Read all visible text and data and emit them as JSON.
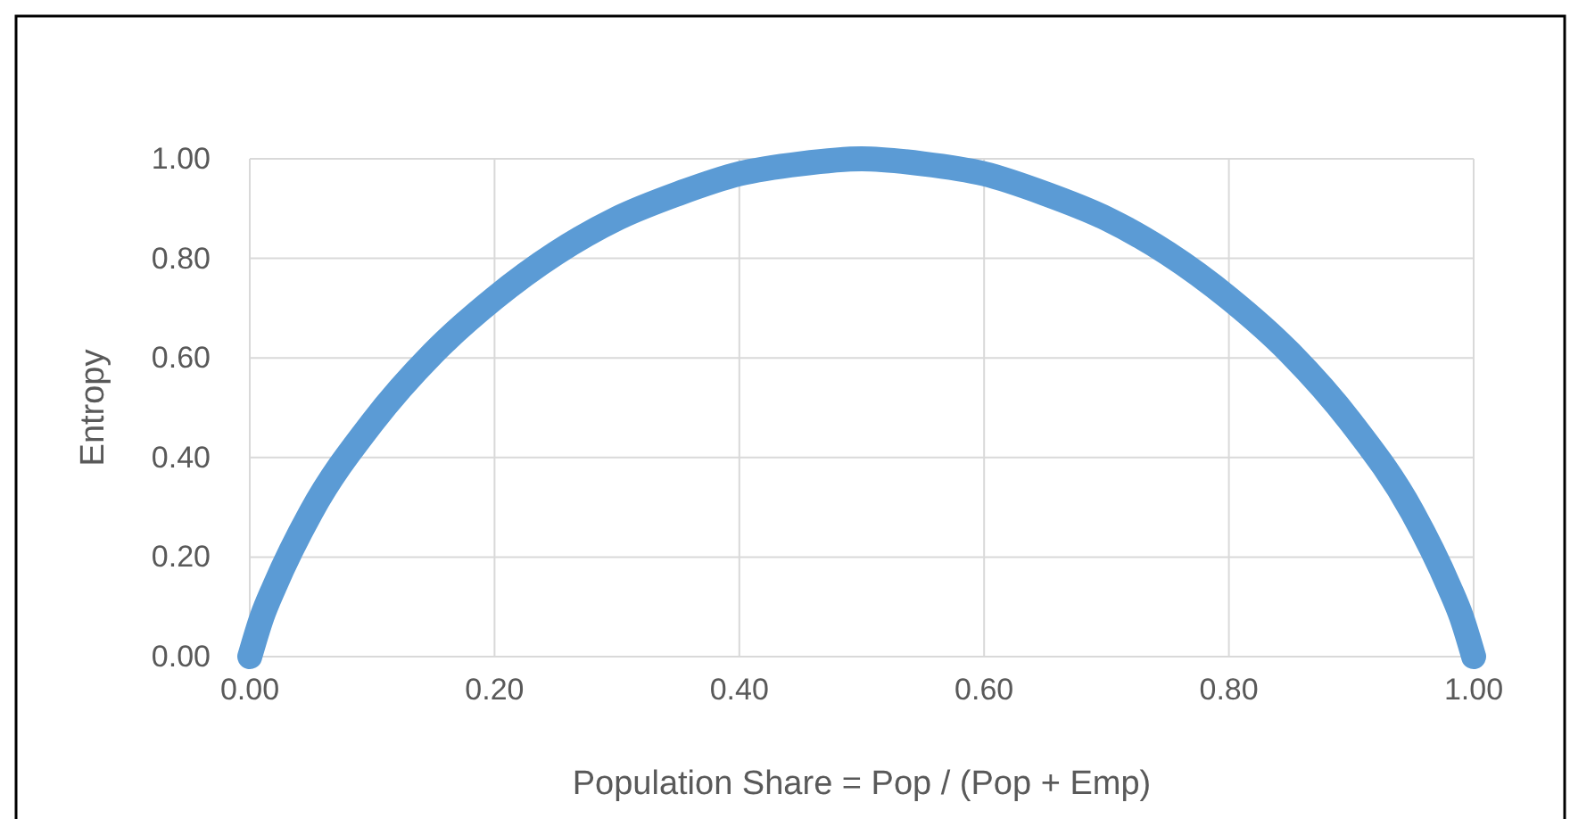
{
  "chart_data": {
    "type": "line",
    "xlabel": "Population Share = Pop / (Pop + Emp)",
    "ylabel": "Entropy",
    "x": [
      0,
      0.01,
      0.02,
      0.05,
      0.1,
      0.15,
      0.2,
      0.25,
      0.3,
      0.35,
      0.4,
      0.45,
      0.5,
      0.55,
      0.6,
      0.65,
      0.7,
      0.75,
      0.8,
      0.85,
      0.9,
      0.95,
      0.98,
      0.99,
      1
    ],
    "series": [
      {
        "color": "#5b9bd5",
        "values": [
          0,
          0.08,
          0.14,
          0.29,
          0.47,
          0.61,
          0.72,
          0.81,
          0.88,
          0.93,
          0.97,
          0.99,
          1,
          0.99,
          0.97,
          0.93,
          0.88,
          0.81,
          0.72,
          0.61,
          0.47,
          0.29,
          0.14,
          0.08,
          0
        ]
      }
    ],
    "xlim": [
      0,
      1
    ],
    "ylim": [
      0,
      1
    ],
    "xticks": [
      {
        "value": 0,
        "label": "0.00"
      },
      {
        "value": 0.2,
        "label": "0.20"
      },
      {
        "value": 0.4,
        "label": "0.40"
      },
      {
        "value": 0.6,
        "label": "0.60"
      },
      {
        "value": 0.8,
        "label": "0.80"
      },
      {
        "value": 1,
        "label": "1.00"
      }
    ],
    "yticks": [
      {
        "value": 0,
        "label": "0.00"
      },
      {
        "value": 0.2,
        "label": "0.20"
      },
      {
        "value": 0.4,
        "label": "0.40"
      },
      {
        "value": 0.6,
        "label": "0.60"
      },
      {
        "value": 0.8,
        "label": "0.80"
      },
      {
        "value": 1,
        "label": "1.00"
      }
    ],
    "grid": true,
    "line_style": "solid"
  }
}
